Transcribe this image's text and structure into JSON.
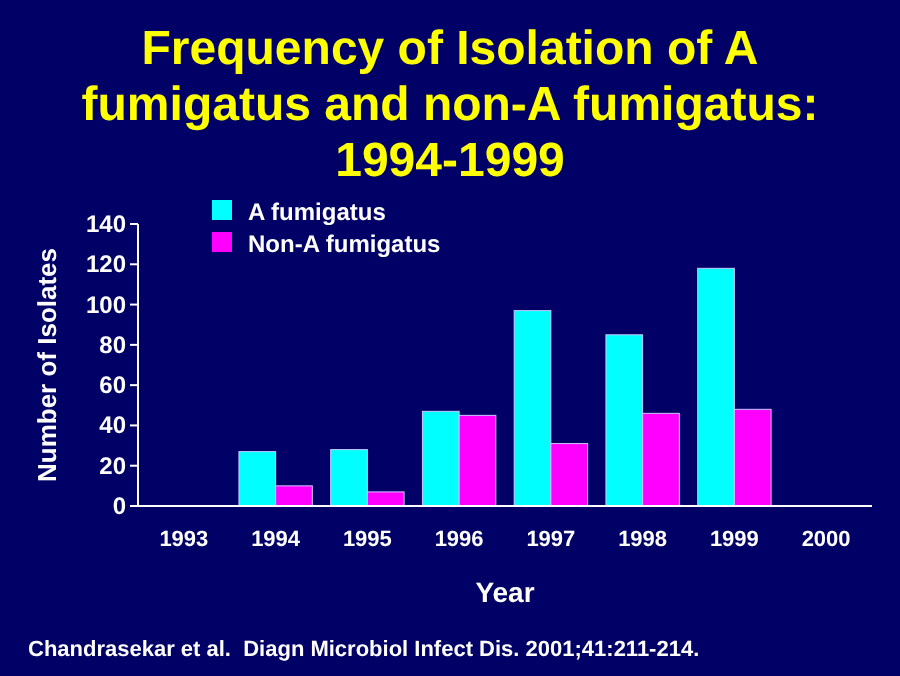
{
  "chart_data": {
    "type": "bar",
    "title": "Frequency of Isolation of A fumigatus and non-A fumigatus: 1994-1999",
    "xlabel": "Year",
    "ylabel": "Number of Isolates",
    "categories": [
      "1993",
      "1994",
      "1995",
      "1996",
      "1997",
      "1998",
      "1999",
      "2000"
    ],
    "series": [
      {
        "name": "A fumigatus",
        "color": "#00ffff",
        "values": [
          null,
          27,
          28,
          47,
          97,
          85,
          118,
          null
        ]
      },
      {
        "name": "Non-A fumigatus",
        "color": "#ff00ff",
        "values": [
          null,
          10,
          7,
          45,
          31,
          46,
          48,
          null
        ]
      }
    ],
    "ylim": [
      0,
      140
    ],
    "yticks": [
      0,
      20,
      40,
      60,
      80,
      100,
      120,
      140
    ],
    "grid": false,
    "legend": "top left",
    "annotations": [
      "Chandrasekar et al.  Diagn Microbiol Infect Dis. 2001;41:211-214."
    ]
  }
}
